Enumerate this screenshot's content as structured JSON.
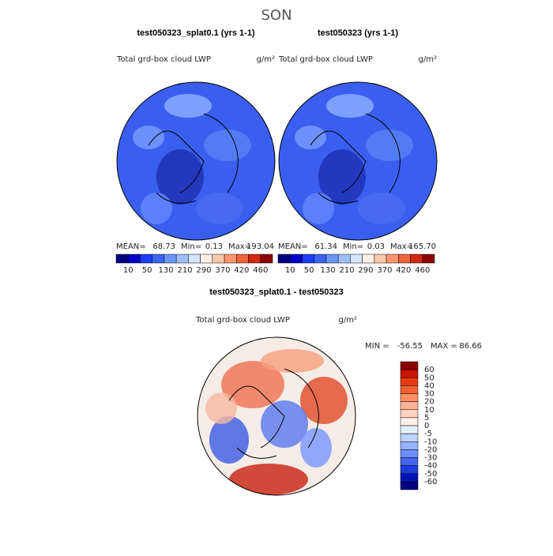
{
  "title": "SON",
  "panels": [
    {
      "title": "test050323_splat0.1 (yrs 1-1)",
      "subtitle": "Total grd-box cloud LWP",
      "units": "g/m²",
      "mean_label": "MEAN=",
      "mean": 68.73,
      "min_label": "Min=",
      "min": 0.13,
      "max_label": "Max=",
      "max": 193.04
    },
    {
      "title": "test050323 (yrs 1-1)",
      "subtitle": "Total grd-box cloud LWP",
      "units": "g/m²",
      "mean_label": "MEAN=",
      "mean": 61.34,
      "min_label": "Min=",
      "min": 0.03,
      "max_label": "Max=",
      "max": 165.7,
      "max_text": "165.70"
    }
  ],
  "colorbar": {
    "labels": [
      10,
      50,
      130,
      210,
      290,
      370,
      420,
      460
    ],
    "colors": [
      "#00007f",
      "#0000c8",
      "#1e3cff",
      "#3c64f0",
      "#6e96ff",
      "#a0beff",
      "#d2e6ff",
      "#fff0e6",
      "#ffc8aa",
      "#ff9670",
      "#f0643c",
      "#d2280f",
      "#8c0000"
    ]
  },
  "difference": {
    "title": "test050323_splat0.1 - test050323",
    "subtitle": "Total grd-box cloud LWP",
    "units": "g/m²",
    "min_label": "MIN =",
    "min": -56.55,
    "max_label": "MAX =",
    "max": 86.66,
    "labels": [
      60,
      50,
      40,
      30,
      20,
      10,
      5,
      0,
      -5,
      -10,
      -20,
      -30,
      -40,
      -50,
      -60
    ],
    "colors": [
      "#8c0000",
      "#c81400",
      "#e63c14",
      "#f06432",
      "#ff9064",
      "#ffb496",
      "#ffd2be",
      "#fff0e6",
      "#e6f0ff",
      "#bed2ff",
      "#96b4ff",
      "#6e8cff",
      "#4664f0",
      "#1e3cdc",
      "#0014b4",
      "#000080"
    ]
  }
}
